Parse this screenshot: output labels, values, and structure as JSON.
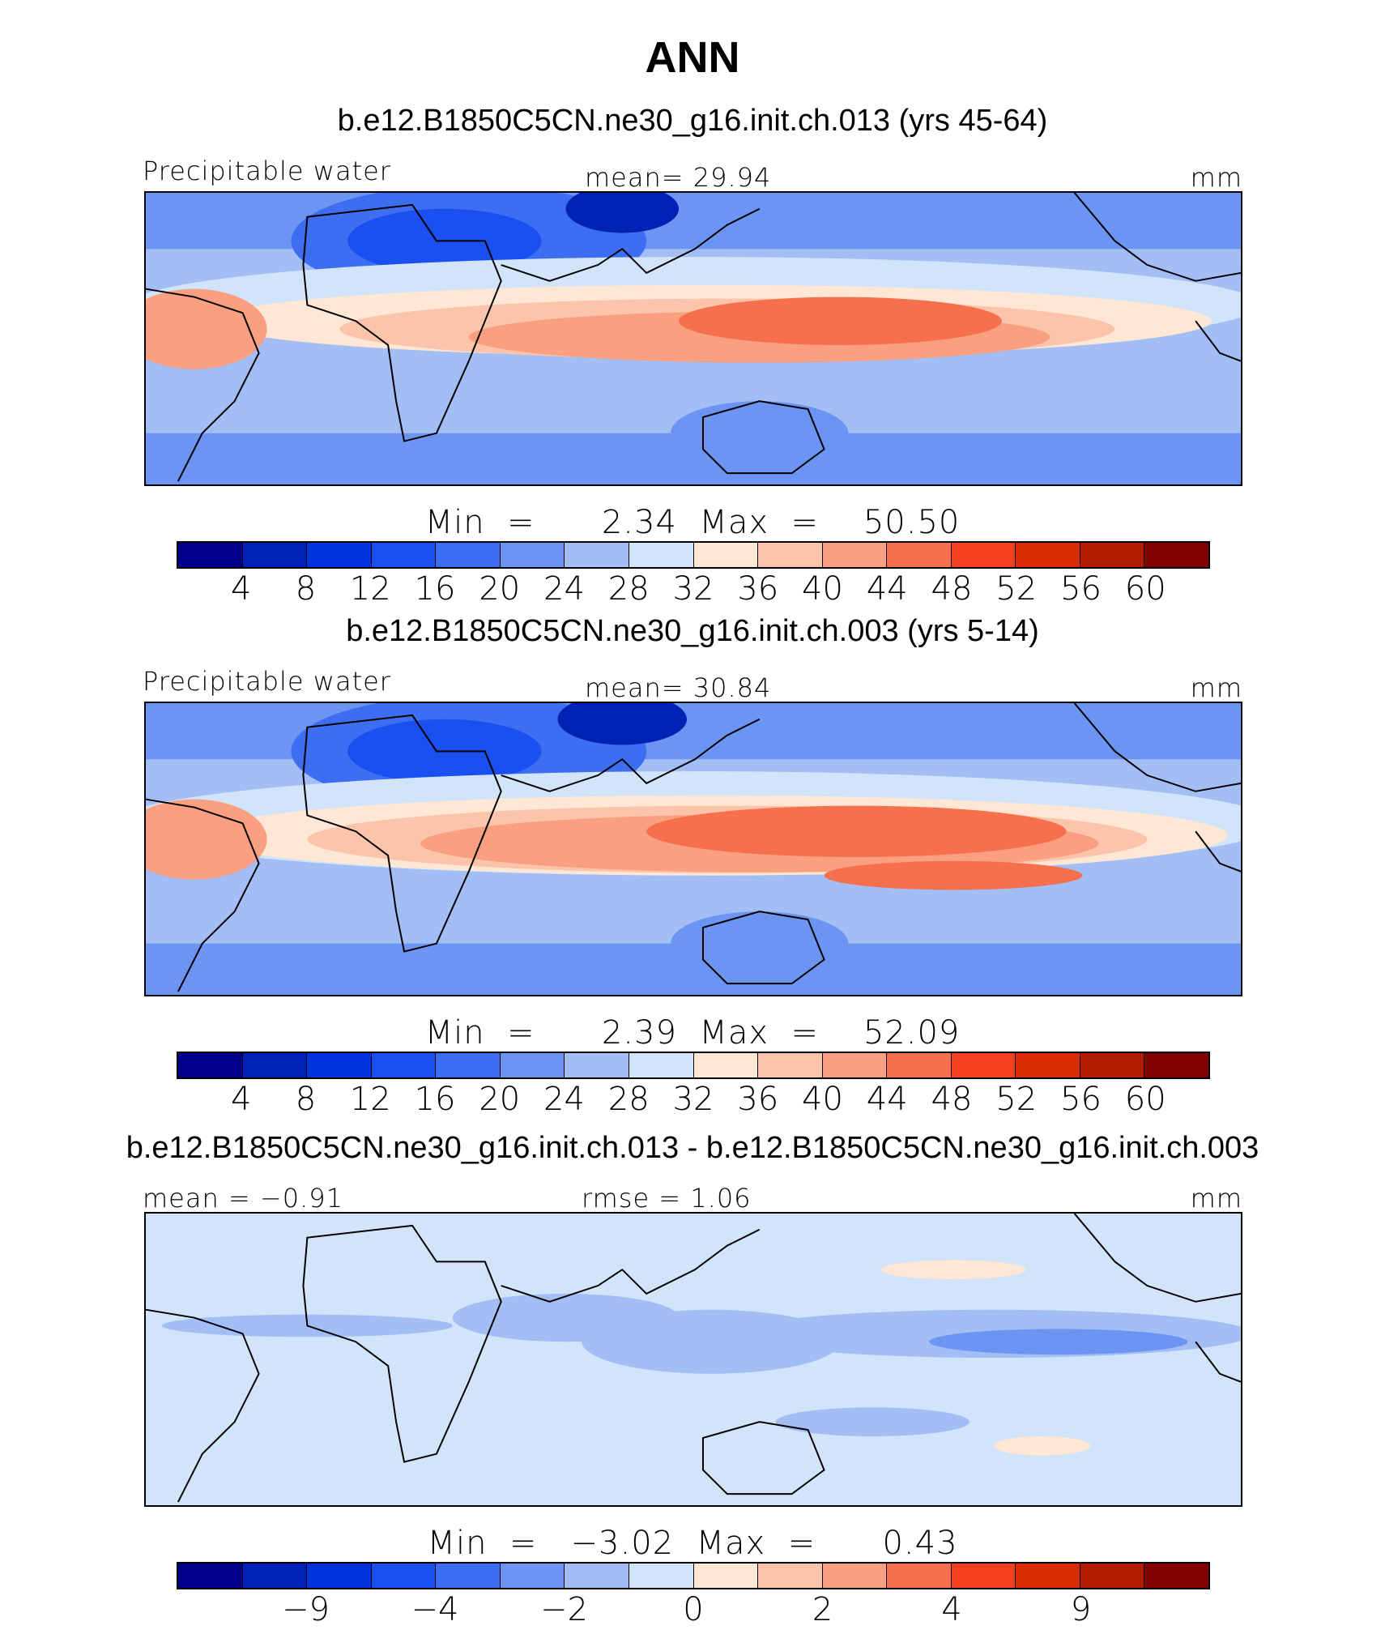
{
  "title": "ANN",
  "colors": [
    "#00008b",
    "#0022b4",
    "#0033dd",
    "#1a4ff0",
    "#3d6ef2",
    "#6c94f2",
    "#a2bef5",
    "#d2e4fa",
    "#fee7d4",
    "#fcc4ab",
    "#fa9f7f",
    "#f6704d",
    "#f2401f",
    "#d92b04",
    "#b21b00",
    "#820000"
  ],
  "panels": [
    {
      "title": "b.e12.B1850C5CN.ne30_g16.init.ch.013 (yrs 45-64)",
      "left_label": "Precipitable  water",
      "center_label": "mean=   29.94",
      "right_label": "mm",
      "stats": "Min  =      2.34  Max  =    50.50",
      "ticks": [
        "4",
        "8",
        "12",
        "16",
        "20",
        "24",
        "28",
        "32",
        "36",
        "40",
        "44",
        "48",
        "52",
        "56",
        "60"
      ]
    },
    {
      "title": "b.e12.B1850C5CN.ne30_g16.init.ch.003 (yrs 5-14)",
      "left_label": "Precipitable  water",
      "center_label": "mean=   30.84",
      "right_label": "mm",
      "stats": "Min  =      2.39  Max  =    52.09",
      "ticks": [
        "4",
        "8",
        "12",
        "16",
        "20",
        "24",
        "28",
        "32",
        "36",
        "40",
        "44",
        "48",
        "52",
        "56",
        "60"
      ]
    },
    {
      "title": "b.e12.B1850C5CN.ne30_g16.init.ch.013 - b.e12.B1850C5CN.ne30_g16.init.ch.003",
      "left_label": "mean  =   −0.91",
      "center_label": "rmse  =     1.06",
      "right_label": "mm",
      "stats": "Min  =   −3.02  Max  =      0.43",
      "ticks": [
        "",
        "−9",
        "",
        "−4",
        "",
        "−2",
        "",
        "0",
        "",
        "2",
        "",
        "4",
        "",
        "9",
        ""
      ]
    }
  ]
}
